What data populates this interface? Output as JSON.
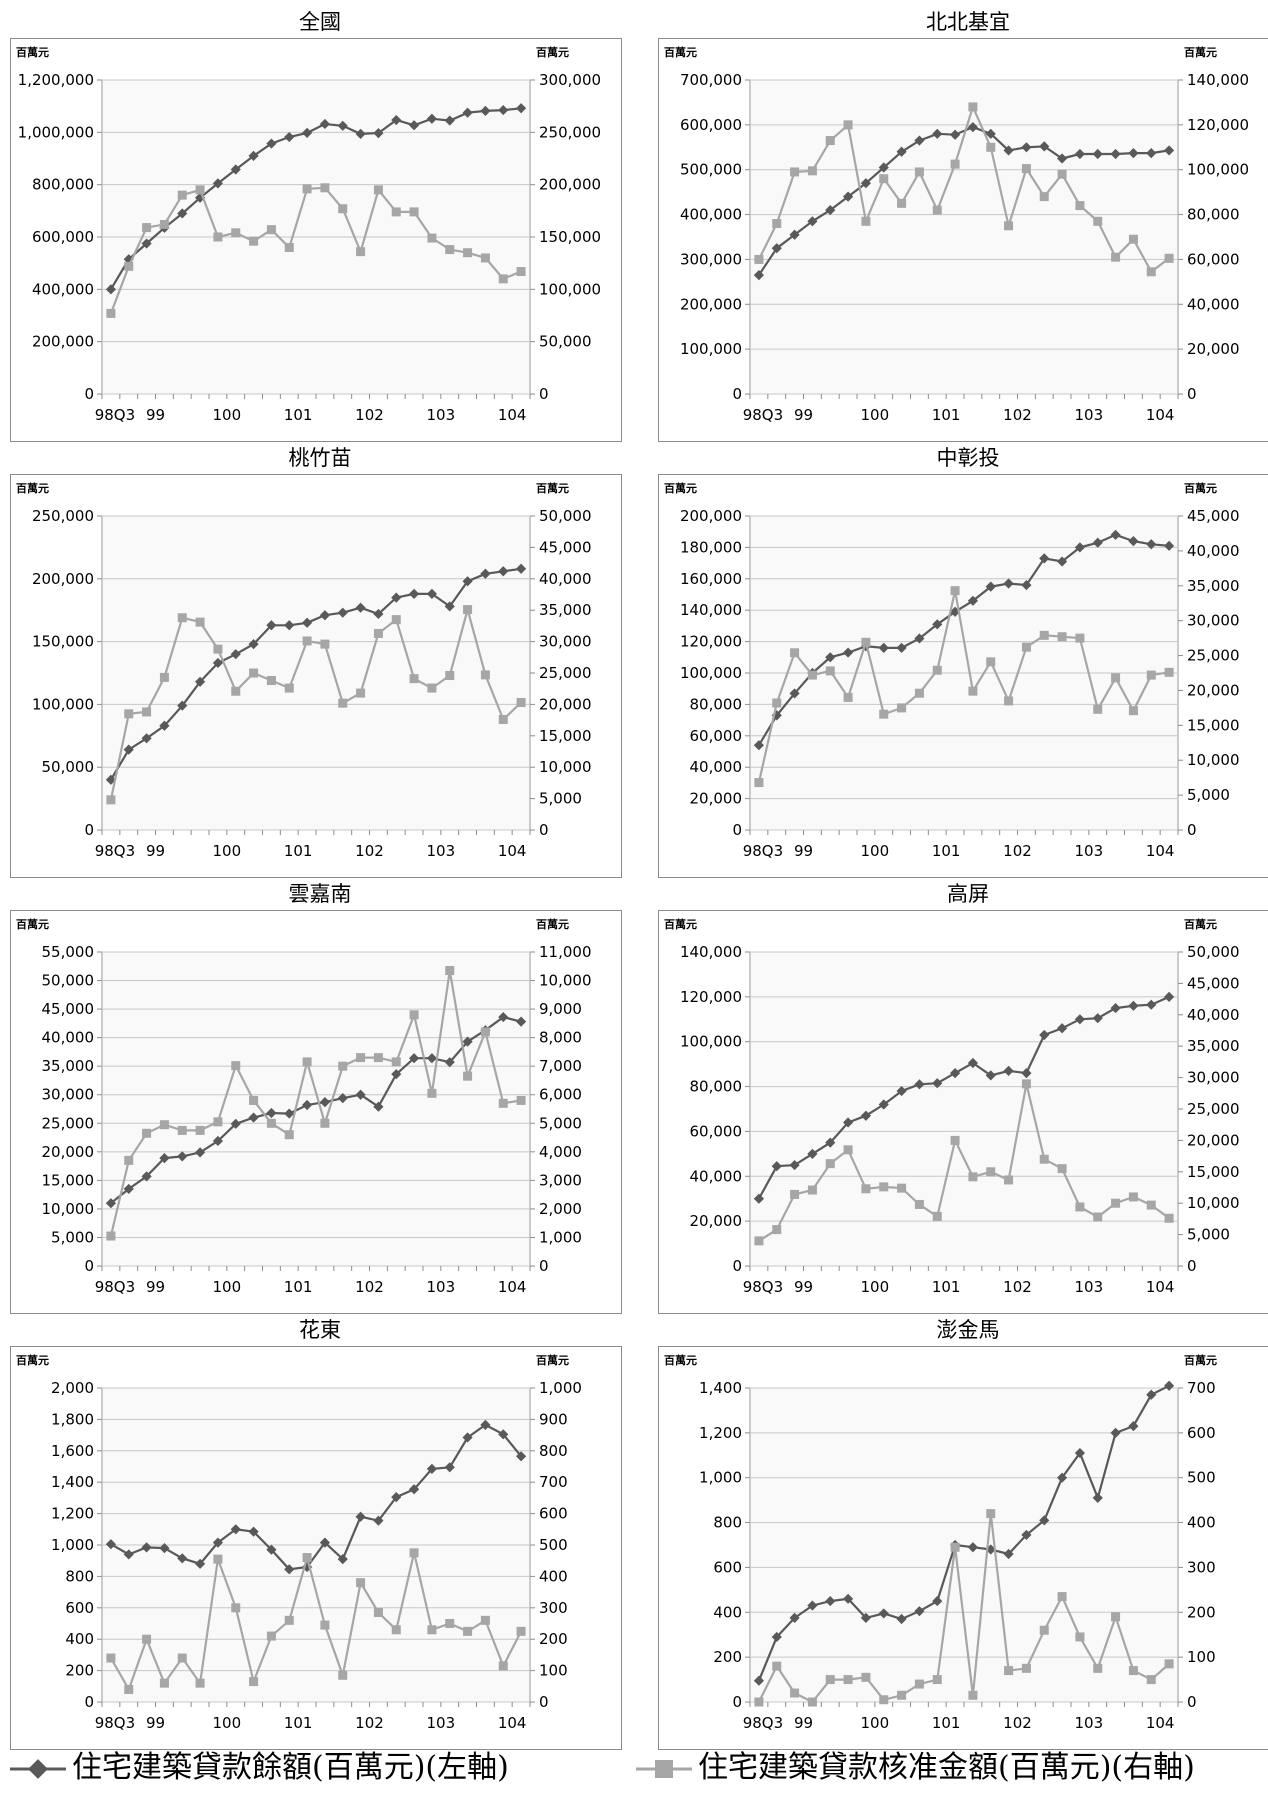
{
  "legend": {
    "left_series": "住宅建築貸款餘額(百萬元)(左軸)",
    "right_series": "住宅建築貸款核准金額(百萬元)(右軸)",
    "left_color": "#595959",
    "right_color": "#a6a6a6"
  },
  "chart_data": [
    {
      "type": "line",
      "title": "全國",
      "y_unit_left": "百萬元",
      "y_unit_right": "百萬元",
      "x_tick_labels": [
        "98Q3",
        "99",
        "100",
        "101",
        "102",
        "103",
        "104"
      ],
      "x": [
        "98Q3",
        "98Q4",
        "99Q1",
        "99Q2",
        "99Q3",
        "99Q4",
        "100Q1",
        "100Q2",
        "100Q3",
        "100Q4",
        "101Q1",
        "101Q2",
        "101Q3",
        "101Q4",
        "102Q1",
        "102Q2",
        "102Q3",
        "102Q4",
        "103Q1",
        "103Q2",
        "103Q3",
        "103Q4",
        "104Q1",
        "104Q2"
      ],
      "left_axis": {
        "ticks": [
          0,
          200000,
          400000,
          600000,
          800000,
          1000000,
          1200000
        ],
        "ylim": [
          0,
          1200000
        ]
      },
      "right_axis": {
        "ticks": [
          0,
          50000,
          100000,
          150000,
          200000,
          250000,
          300000
        ],
        "ylim": [
          0,
          300000
        ]
      },
      "series": [
        {
          "axis": "left",
          "values": [
            400000,
            515000,
            575000,
            635000,
            690000,
            750000,
            805000,
            858000,
            910000,
            957000,
            982000,
            998000,
            1032000,
            1025000,
            994000,
            997000,
            1047000,
            1027000,
            1052000,
            1045000,
            1075000,
            1082000,
            1085000,
            1092000
          ]
        },
        {
          "axis": "right",
          "values": [
            77000,
            122000,
            159000,
            162000,
            190000,
            195000,
            150000,
            154000,
            146000,
            157000,
            140000,
            196000,
            197000,
            177000,
            136000,
            195000,
            174000,
            174000,
            149000,
            138000,
            135000,
            130000,
            110000,
            117000
          ]
        }
      ]
    },
    {
      "type": "line",
      "title": "北北基宜",
      "y_unit_left": "百萬元",
      "y_unit_right": "百萬元",
      "x_tick_labels": [
        "98Q3",
        "99",
        "100",
        "101",
        "102",
        "103",
        "104"
      ],
      "x": [
        "98Q3",
        "98Q4",
        "99Q1",
        "99Q2",
        "99Q3",
        "99Q4",
        "100Q1",
        "100Q2",
        "100Q3",
        "100Q4",
        "101Q1",
        "101Q2",
        "101Q3",
        "101Q4",
        "102Q1",
        "102Q2",
        "102Q3",
        "102Q4",
        "103Q1",
        "103Q2",
        "103Q3",
        "103Q4",
        "104Q1",
        "104Q2"
      ],
      "left_axis": {
        "ticks": [
          0,
          100000,
          200000,
          300000,
          400000,
          500000,
          600000,
          700000
        ],
        "ylim": [
          0,
          700000
        ]
      },
      "right_axis": {
        "ticks": [
          0,
          20000,
          40000,
          60000,
          80000,
          100000,
          120000,
          140000
        ],
        "ylim": [
          0,
          140000
        ]
      },
      "series": [
        {
          "axis": "left",
          "values": [
            265000,
            325000,
            355000,
            385000,
            410000,
            440000,
            470000,
            505000,
            540000,
            565000,
            580000,
            578000,
            595000,
            580000,
            543000,
            550000,
            552000,
            525000,
            535000,
            535000,
            535000,
            537000,
            537000,
            543000
          ]
        },
        {
          "axis": "right",
          "values": [
            60000,
            76000,
            99000,
            99500,
            113000,
            120000,
            77000,
            96000,
            85000,
            99000,
            82000,
            102500,
            128000,
            110000,
            75000,
            100500,
            88000,
            98000,
            84000,
            77000,
            61000,
            69000,
            54500,
            60500
          ]
        }
      ]
    },
    {
      "type": "line",
      "title": "桃竹苗",
      "y_unit_left": "百萬元",
      "y_unit_right": "百萬元",
      "x_tick_labels": [
        "98Q3",
        "99",
        "100",
        "101",
        "102",
        "103",
        "104"
      ],
      "x": [
        "98Q3",
        "98Q4",
        "99Q1",
        "99Q2",
        "99Q3",
        "99Q4",
        "100Q1",
        "100Q2",
        "100Q3",
        "100Q4",
        "101Q1",
        "101Q2",
        "101Q3",
        "101Q4",
        "102Q1",
        "102Q2",
        "102Q3",
        "102Q4",
        "103Q1",
        "103Q2",
        "103Q3",
        "103Q4",
        "104Q1",
        "104Q2"
      ],
      "left_axis": {
        "ticks": [
          0,
          50000,
          100000,
          150000,
          200000,
          250000
        ],
        "ylim": [
          0,
          250000
        ]
      },
      "right_axis": {
        "ticks": [
          0,
          5000,
          10000,
          15000,
          20000,
          25000,
          30000,
          35000,
          40000,
          45000,
          50000
        ],
        "ylim": [
          0,
          50000
        ]
      },
      "series": [
        {
          "axis": "left",
          "values": [
            40000,
            64000,
            73000,
            83000,
            99000,
            118000,
            133000,
            140000,
            148000,
            163000,
            163000,
            165000,
            171000,
            173000,
            177000,
            172000,
            185000,
            188000,
            188000,
            178000,
            198000,
            204000,
            206000,
            208000
          ]
        },
        {
          "axis": "right",
          "values": [
            4800,
            18500,
            18800,
            24300,
            33800,
            33100,
            28800,
            22100,
            25000,
            23800,
            22600,
            30100,
            29600,
            20200,
            21800,
            31300,
            33500,
            24100,
            22600,
            24600,
            35100,
            24700,
            17600,
            20300
          ]
        }
      ]
    },
    {
      "type": "line",
      "title": "中彰投",
      "y_unit_left": "百萬元",
      "y_unit_right": "百萬元",
      "x_tick_labels": [
        "98Q3",
        "99",
        "100",
        "101",
        "102",
        "103",
        "104"
      ],
      "x": [
        "98Q3",
        "98Q4",
        "99Q1",
        "99Q2",
        "99Q3",
        "99Q4",
        "100Q1",
        "100Q2",
        "100Q3",
        "100Q4",
        "101Q1",
        "101Q2",
        "101Q3",
        "101Q4",
        "102Q1",
        "102Q2",
        "102Q3",
        "102Q4",
        "103Q1",
        "103Q2",
        "103Q3",
        "103Q4",
        "104Q1",
        "104Q2"
      ],
      "left_axis": {
        "ticks": [
          0,
          20000,
          40000,
          60000,
          80000,
          100000,
          120000,
          140000,
          160000,
          180000,
          200000
        ],
        "ylim": [
          0,
          200000
        ]
      },
      "right_axis": {
        "ticks": [
          0,
          5000,
          10000,
          15000,
          20000,
          25000,
          30000,
          35000,
          40000,
          45000
        ],
        "ylim": [
          0,
          45000
        ]
      },
      "series": [
        {
          "axis": "left",
          "values": [
            54000,
            73000,
            87000,
            100000,
            110000,
            113000,
            117000,
            116000,
            116000,
            122000,
            131000,
            139000,
            146000,
            155000,
            157000,
            156000,
            173000,
            171000,
            180000,
            183000,
            188000,
            184000,
            182000,
            181000
          ]
        },
        {
          "axis": "right",
          "values": [
            6800,
            18200,
            25400,
            22200,
            22800,
            19000,
            26900,
            16600,
            17500,
            19600,
            22900,
            34300,
            19900,
            24100,
            18500,
            26200,
            27900,
            27700,
            27500,
            17300,
            21800,
            17100,
            22200,
            22600
          ]
        }
      ]
    },
    {
      "type": "line",
      "title": "雲嘉南",
      "y_unit_left": "百萬元",
      "y_unit_right": "百萬元",
      "x_tick_labels": [
        "98Q3",
        "99",
        "100",
        "101",
        "102",
        "103",
        "104"
      ],
      "x": [
        "98Q3",
        "98Q4",
        "99Q1",
        "99Q2",
        "99Q3",
        "99Q4",
        "100Q1",
        "100Q2",
        "100Q3",
        "100Q4",
        "101Q1",
        "101Q2",
        "101Q3",
        "101Q4",
        "102Q1",
        "102Q2",
        "102Q3",
        "102Q4",
        "103Q1",
        "103Q2",
        "103Q3",
        "103Q4",
        "104Q1",
        "104Q2"
      ],
      "left_axis": {
        "ticks": [
          0,
          5000,
          10000,
          15000,
          20000,
          25000,
          30000,
          35000,
          40000,
          45000,
          50000,
          55000
        ],
        "ylim": [
          0,
          55000
        ]
      },
      "right_axis": {
        "ticks": [
          0,
          1000,
          2000,
          3000,
          4000,
          5000,
          6000,
          7000,
          8000,
          9000,
          10000,
          11000
        ],
        "ylim": [
          0,
          11000
        ]
      },
      "series": [
        {
          "axis": "left",
          "values": [
            11000,
            13500,
            15700,
            18900,
            19200,
            19900,
            21900,
            24900,
            26000,
            26800,
            26700,
            28200,
            28700,
            29400,
            30000,
            27900,
            33600,
            36400,
            36400,
            35700,
            39300,
            41300,
            43600,
            42800
          ]
        },
        {
          "axis": "right",
          "values": [
            1050,
            3700,
            4650,
            4950,
            4750,
            4750,
            5050,
            7020,
            5800,
            5000,
            4600,
            7150,
            5000,
            7000,
            7300,
            7300,
            7150,
            8800,
            6050,
            10350,
            6650,
            8200,
            5700,
            5800
          ]
        }
      ]
    },
    {
      "type": "line",
      "title": "高屏",
      "y_unit_left": "百萬元",
      "y_unit_right": "百萬元",
      "x_tick_labels": [
        "98Q3",
        "99",
        "100",
        "101",
        "102",
        "103",
        "104"
      ],
      "x": [
        "98Q3",
        "98Q4",
        "99Q1",
        "99Q2",
        "99Q3",
        "99Q4",
        "100Q1",
        "100Q2",
        "100Q3",
        "100Q4",
        "101Q1",
        "101Q2",
        "101Q3",
        "101Q4",
        "102Q1",
        "102Q2",
        "102Q3",
        "102Q4",
        "103Q1",
        "103Q2",
        "103Q3",
        "103Q4",
        "104Q1",
        "104Q2"
      ],
      "left_axis": {
        "ticks": [
          0,
          20000,
          40000,
          60000,
          80000,
          100000,
          120000,
          140000
        ],
        "ylim": [
          0,
          140000
        ]
      },
      "right_axis": {
        "ticks": [
          0,
          5000,
          10000,
          15000,
          20000,
          25000,
          30000,
          35000,
          40000,
          45000,
          50000
        ],
        "ylim": [
          0,
          50000
        ]
      },
      "series": [
        {
          "axis": "left",
          "values": [
            30000,
            44500,
            45000,
            50000,
            55000,
            64000,
            67000,
            72000,
            78000,
            81000,
            81500,
            86000,
            90500,
            85000,
            87000,
            86000,
            103000,
            106000,
            110000,
            110500,
            115000,
            116000,
            116500,
            120000
          ]
        },
        {
          "axis": "right",
          "values": [
            4000,
            5800,
            11400,
            12100,
            16300,
            18500,
            12300,
            12600,
            12400,
            9800,
            7900,
            20000,
            14200,
            15000,
            13700,
            29000,
            17000,
            15500,
            9400,
            7800,
            10000,
            11000,
            9700,
            7600
          ]
        }
      ]
    },
    {
      "type": "line",
      "title": "花東",
      "y_unit_left": "百萬元",
      "y_unit_right": "百萬元",
      "x_tick_labels": [
        "98Q3",
        "99",
        "100",
        "101",
        "102",
        "103",
        "104"
      ],
      "x": [
        "98Q3",
        "98Q4",
        "99Q1",
        "99Q2",
        "99Q3",
        "99Q4",
        "100Q1",
        "100Q2",
        "100Q3",
        "100Q4",
        "101Q1",
        "101Q2",
        "101Q3",
        "101Q4",
        "102Q1",
        "102Q2",
        "102Q3",
        "102Q4",
        "103Q1",
        "103Q2",
        "103Q3",
        "103Q4",
        "104Q1",
        "104Q2"
      ],
      "left_axis": {
        "ticks": [
          0,
          200,
          400,
          600,
          800,
          1000,
          1200,
          1400,
          1600,
          1800,
          2000
        ],
        "ylim": [
          0,
          2000
        ]
      },
      "right_axis": {
        "ticks": [
          0,
          100,
          200,
          300,
          400,
          500,
          600,
          700,
          800,
          900,
          1000
        ],
        "ylim": [
          0,
          1000
        ]
      },
      "series": [
        {
          "axis": "left",
          "values": [
            1005,
            940,
            985,
            980,
            915,
            880,
            1015,
            1100,
            1085,
            970,
            845,
            860,
            1015,
            910,
            1180,
            1155,
            1305,
            1355,
            1485,
            1495,
            1685,
            1765,
            1705,
            1565
          ]
        },
        {
          "axis": "right",
          "values": [
            140,
            40,
            200,
            60,
            140,
            60,
            455,
            300,
            65,
            210,
            260,
            460,
            245,
            85,
            380,
            285,
            230,
            475,
            230,
            250,
            225,
            260,
            115,
            225
          ]
        }
      ]
    },
    {
      "type": "line",
      "title": "澎金馬",
      "y_unit_left": "百萬元",
      "y_unit_right": "百萬元",
      "x_tick_labels": [
        "98Q3",
        "99",
        "100",
        "101",
        "102",
        "103",
        "104"
      ],
      "x": [
        "98Q3",
        "98Q4",
        "99Q1",
        "99Q2",
        "99Q3",
        "99Q4",
        "100Q1",
        "100Q2",
        "100Q3",
        "100Q4",
        "101Q1",
        "101Q2",
        "101Q3",
        "101Q4",
        "102Q1",
        "102Q2",
        "102Q3",
        "102Q4",
        "103Q1",
        "103Q2",
        "103Q3",
        "103Q4",
        "104Q1",
        "104Q2"
      ],
      "left_axis": {
        "ticks": [
          0,
          200,
          400,
          600,
          800,
          1000,
          1200,
          1400
        ],
        "ylim": [
          0,
          1400
        ]
      },
      "right_axis": {
        "ticks": [
          0,
          100,
          200,
          300,
          400,
          500,
          600,
          700
        ],
        "ylim": [
          0,
          700
        ]
      },
      "series": [
        {
          "axis": "left",
          "values": [
            95,
            290,
            375,
            430,
            450,
            460,
            375,
            395,
            370,
            405,
            450,
            700,
            690,
            680,
            660,
            745,
            810,
            1000,
            1110,
            910,
            1200,
            1230,
            1370,
            1410
          ]
        },
        {
          "axis": "right",
          "values": [
            0,
            80,
            20,
            0,
            50,
            50,
            55,
            5,
            15,
            40,
            50,
            345,
            15,
            420,
            70,
            75,
            160,
            235,
            145,
            75,
            190,
            70,
            50,
            85
          ]
        }
      ]
    }
  ]
}
